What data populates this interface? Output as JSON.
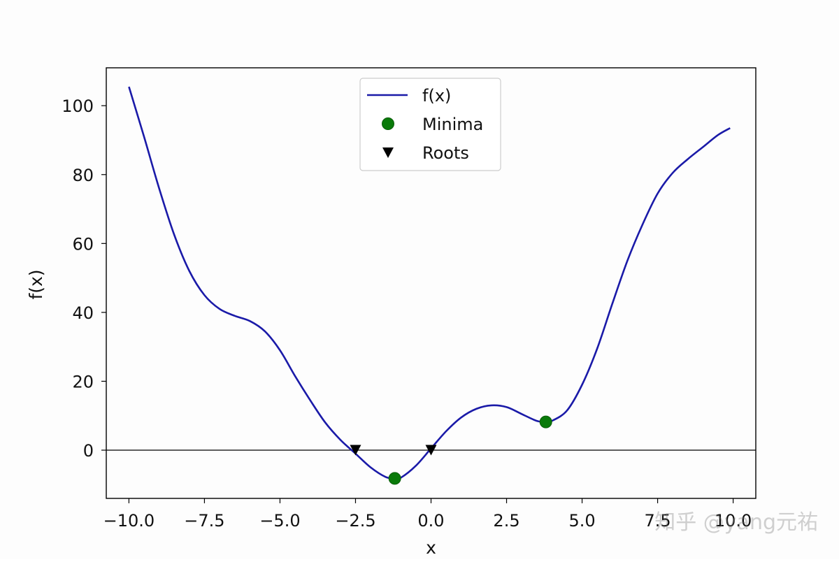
{
  "chart_data": {
    "type": "line",
    "title": "",
    "xlabel": "x",
    "ylabel": "f(x)",
    "xlim": [
      -10.75,
      10.75
    ],
    "ylim": [
      -14,
      111
    ],
    "grid": false,
    "x_ticks": [
      -10.0,
      -7.5,
      -5.0,
      -2.5,
      0.0,
      2.5,
      5.0,
      7.5,
      10.0
    ],
    "x_tick_labels": [
      "−10.0",
      "−7.5",
      "−5.0",
      "−2.5",
      "0.0",
      "2.5",
      "5.0",
      "7.5",
      "10.0"
    ],
    "y_ticks": [
      0,
      20,
      40,
      60,
      80,
      100
    ],
    "y_tick_labels": [
      "0",
      "20",
      "40",
      "60",
      "80",
      "100"
    ],
    "hline_y": 0,
    "legend_placement": "upper-center",
    "series": [
      {
        "name": "f(x)",
        "kind": "line",
        "color": "#1a1aa8",
        "x": [
          -10.0,
          -9.5,
          -9.0,
          -8.5,
          -8.0,
          -7.5,
          -7.0,
          -6.5,
          -6.0,
          -5.5,
          -5.0,
          -4.5,
          -4.0,
          -3.5,
          -3.0,
          -2.5,
          -2.0,
          -1.5,
          -1.2,
          -1.0,
          -0.5,
          0.0,
          0.5,
          1.0,
          1.5,
          2.0,
          2.5,
          3.0,
          3.5,
          3.8,
          4.0,
          4.5,
          5.0,
          5.5,
          6.0,
          6.5,
          7.0,
          7.5,
          8.0,
          8.5,
          9.0,
          9.5,
          9.9
        ],
        "y": [
          105.5,
          91.0,
          76.0,
          62.5,
          52.0,
          45.0,
          41.0,
          39.0,
          37.5,
          34.5,
          29.0,
          21.5,
          14.5,
          8.0,
          3.0,
          -1.0,
          -5.0,
          -7.8,
          -8.2,
          -8.0,
          -4.5,
          0.5,
          5.5,
          9.5,
          12.0,
          13.0,
          12.5,
          10.5,
          8.5,
          8.2,
          8.5,
          11.5,
          19.0,
          29.5,
          42.5,
          55.0,
          65.5,
          74.5,
          80.5,
          84.5,
          88.0,
          91.5,
          93.5
        ]
      },
      {
        "name": "Minima",
        "kind": "scatter",
        "marker": "circle",
        "color": "#0a7a0a",
        "x": [
          -1.2,
          3.8
        ],
        "y": [
          -8.2,
          8.2
        ]
      },
      {
        "name": "Roots",
        "kind": "scatter",
        "marker": "triangle-down",
        "color": "#000000",
        "x": [
          -2.5,
          0.0
        ],
        "y": [
          0,
          0
        ]
      }
    ]
  },
  "watermark": "知乎 @yang元祐"
}
